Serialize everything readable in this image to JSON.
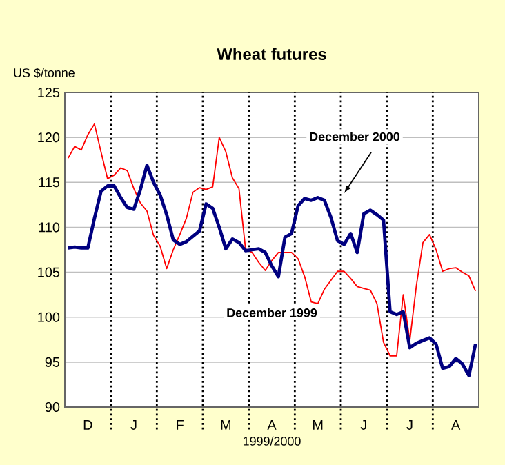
{
  "chart_data": {
    "type": "line",
    "title": "Wheat futures",
    "ylabel": "US $/tonne",
    "xlabel": "1999/2000",
    "ylim": [
      90,
      125
    ],
    "yticks": [
      90,
      95,
      100,
      105,
      110,
      115,
      120,
      125
    ],
    "categories": [
      null,
      null,
      null,
      "D",
      null,
      null,
      null,
      null,
      null,
      null,
      "J",
      null,
      null,
      null,
      null,
      null,
      null,
      "F",
      null,
      null,
      null,
      null,
      null,
      null,
      "M",
      null,
      null,
      null,
      null,
      null,
      null,
      "A",
      null,
      null,
      null,
      null,
      null,
      null,
      "M",
      null,
      null,
      null,
      null,
      null,
      null,
      "J",
      null,
      null,
      null,
      null,
      null,
      null,
      "J",
      null,
      null,
      null,
      null,
      null,
      null,
      "A",
      null,
      null,
      null
    ],
    "grid": true,
    "legend": false,
    "marker": "none",
    "line_style": "solid",
    "series": [
      {
        "name": "December 1999",
        "color": "#ff0000",
        "values": [
          117.7,
          119,
          118.6,
          120.3,
          121.5,
          118.4,
          115.4,
          115.8,
          116.6,
          116.3,
          114.3,
          112.7,
          111.8,
          109.1,
          107.9,
          105.4,
          107.5,
          109.2,
          111,
          113.9,
          114.4,
          114.2,
          114.5,
          120,
          118.4,
          115.5,
          114.3,
          107.6,
          107.2,
          106.1,
          105.2,
          106.3,
          107.2,
          107.2,
          107.2,
          106.5,
          104.5,
          101.7,
          101.5,
          103.1,
          104.1,
          105.1,
          105.1,
          104.3,
          103.4,
          103.2,
          103,
          101.5,
          97.2,
          95.7,
          95.7,
          102.5,
          97.4,
          103.5,
          108.3,
          109.2,
          107.5,
          105.1,
          105.4,
          105.5,
          105,
          104.6,
          102.9
        ]
      },
      {
        "name": "December 2000",
        "color": "#000080",
        "values": [
          107.7,
          107.8,
          107.7,
          107.7,
          111,
          114,
          114.6,
          114.6,
          113.3,
          112.2,
          112,
          114.2,
          116.9,
          115,
          113.6,
          111.4,
          108.6,
          108.1,
          108.4,
          109,
          109.6,
          112.6,
          112.1,
          110,
          107.6,
          108.7,
          108.3,
          107.4,
          107.5,
          107.6,
          107.2,
          105.7,
          104.5,
          108.9,
          109.3,
          112.4,
          113.2,
          113,
          113.3,
          113,
          111.1,
          108.5,
          108.1,
          109.3,
          107.2,
          111.5,
          111.9,
          111.4,
          110.8,
          100.6,
          100.3,
          100.6,
          96.6,
          97.1,
          97.4,
          97.7,
          97,
          94.3,
          94.5,
          95.4,
          94.8,
          93.5,
          97
        ]
      }
    ]
  }
}
